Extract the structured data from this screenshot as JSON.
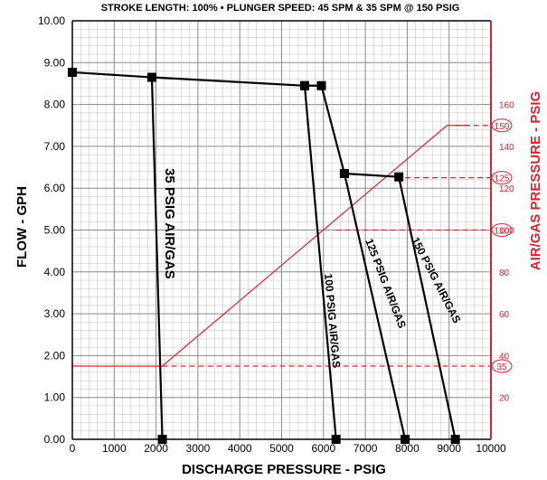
{
  "chart_data": {
    "type": "line",
    "title": "STROKE LENGTH: 100% • PLUNGER SPEED: 45 SPM & 35 SPM @ 150 PSIG",
    "xlabel": "DISCHARGE PRESSURE - PSIG",
    "ylabel": "FLOW - GPH",
    "y2label": "AIR/GAS PRESSURE - PSIG",
    "xlim": [
      0,
      10000
    ],
    "ylim": [
      0,
      10
    ],
    "y2lim": [
      0,
      200
    ],
    "x_ticks": [
      "0",
      "1000",
      "2000",
      "3000",
      "4000",
      "5000",
      "6000",
      "7000",
      "8000",
      "9000",
      "10000"
    ],
    "y_ticks": [
      "0.00",
      "1.00",
      "2.00",
      "3.00",
      "4.00",
      "5.00",
      "6.00",
      "7.00",
      "8.00",
      "9.00",
      "10.00"
    ],
    "y2_ticks": [
      "20",
      "40",
      "60",
      "80",
      "100",
      "120",
      "140",
      "160"
    ],
    "grid": true,
    "colors": {
      "curve": "#000000",
      "air": "#e0202a",
      "grid": "#bfbfbf"
    },
    "series": [
      {
        "name": "35 PSIG AIR/GAS",
        "points": [
          [
            0,
            8.77
          ],
          [
            1900,
            8.65
          ],
          [
            2150,
            0
          ]
        ]
      },
      {
        "name": "100 PSIG AIR/GAS",
        "points": [
          [
            1900,
            8.65
          ],
          [
            5550,
            8.45
          ],
          [
            6300,
            0
          ]
        ]
      },
      {
        "name": "125 PSIG AIR/GAS",
        "points": [
          [
            5550,
            8.45
          ],
          [
            5950,
            8.45
          ],
          [
            6500,
            6.35
          ],
          [
            7950,
            0
          ]
        ]
      },
      {
        "name": "150 PSIG AIR/GAS",
        "points": [
          [
            6500,
            6.35
          ],
          [
            7800,
            6.27
          ],
          [
            9150,
            0
          ]
        ]
      }
    ],
    "air_pressure_line": {
      "points": [
        [
          0,
          35
        ],
        [
          2150,
          35
        ],
        [
          8950,
          150
        ],
        [
          9500,
          150
        ]
      ]
    },
    "air_pressure_markers": [
      {
        "label": "35",
        "value": 35,
        "from_x": 2150
      },
      {
        "label": "100",
        "value": 100,
        "from_x": 6300
      },
      {
        "label": "125",
        "value": 125,
        "from_x": 7950
      },
      {
        "label": "150",
        "value": 150,
        "from_x": 9150
      }
    ]
  }
}
